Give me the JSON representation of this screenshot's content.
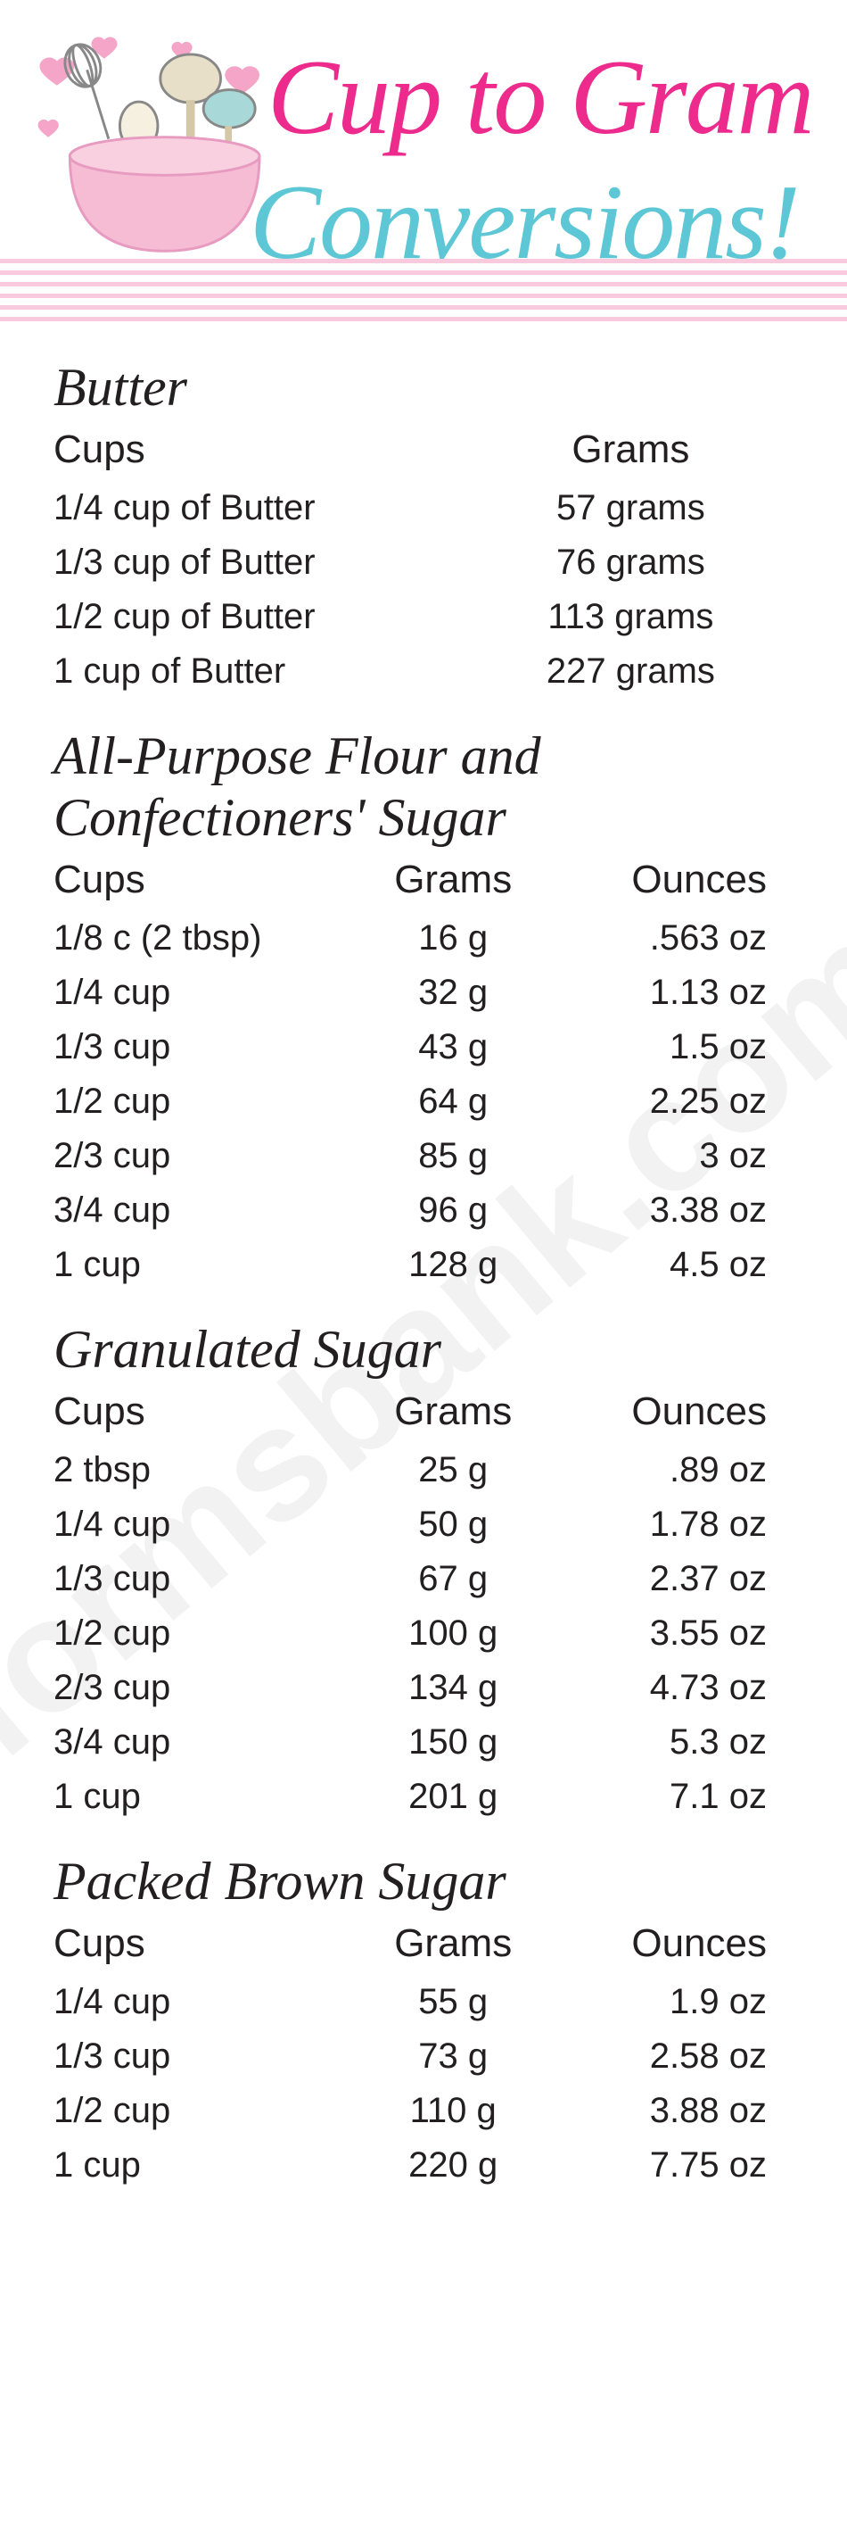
{
  "header": {
    "title_line1": "Cup to Gram",
    "title_line2": "Conversions!",
    "title_color1": "#ec2b8c",
    "title_color2": "#5ec7d6",
    "stripe_color": "#f9c9dd",
    "stripe_count": 6,
    "bowl_color": "#f5bcd4",
    "heart_color": "#f5a6c8"
  },
  "watermark": "formsbank.com",
  "sections": [
    {
      "title": "Butter",
      "columns": [
        "Cups",
        "Grams"
      ],
      "rows": [
        [
          "1/4 cup of Butter",
          "57 grams"
        ],
        [
          "1/3 cup of Butter",
          "76 grams"
        ],
        [
          "1/2 cup of Butter",
          "113 grams"
        ],
        [
          "1 cup of Butter",
          "227 grams"
        ]
      ]
    },
    {
      "title": "All-Purpose Flour and Confectioners' Sugar",
      "columns": [
        "Cups",
        "Grams",
        "Ounces"
      ],
      "rows": [
        [
          "1/8 c (2 tbsp)",
          "16 g",
          ".563 oz"
        ],
        [
          "1/4 cup",
          "32 g",
          "1.13 oz"
        ],
        [
          "1/3 cup",
          "43 g",
          "1.5  oz"
        ],
        [
          "1/2 cup",
          "64 g",
          "2.25 oz"
        ],
        [
          "2/3 cup",
          "85 g",
          "3  oz"
        ],
        [
          "3/4 cup",
          "96 g",
          "3.38 oz"
        ],
        [
          "1 cup",
          "128 g",
          "4.5 oz"
        ]
      ]
    },
    {
      "title": "Granulated Sugar",
      "columns": [
        "Cups",
        "Grams",
        "Ounces"
      ],
      "rows": [
        [
          "2 tbsp",
          "25 g",
          ".89 oz"
        ],
        [
          "1/4 cup",
          "50 g",
          "1.78 oz"
        ],
        [
          "1/3 cup",
          "67 g",
          "2.37 oz"
        ],
        [
          "1/2 cup",
          "100 g",
          "3.55 oz"
        ],
        [
          "2/3 cup",
          "134 g",
          "4.73 oz"
        ],
        [
          "3/4 cup",
          "150 g",
          "5.3 oz"
        ],
        [
          "1 cup",
          "201 g",
          "7.1 oz"
        ]
      ]
    },
    {
      "title": "Packed Brown Sugar",
      "columns": [
        "Cups",
        "Grams",
        "Ounces"
      ],
      "rows": [
        [
          "1/4 cup",
          "55 g",
          "1.9 oz"
        ],
        [
          "1/3 cup",
          "73 g",
          "2.58 oz"
        ],
        [
          "1/2 cup",
          "110 g",
          "3.88 oz"
        ],
        [
          "1 cup",
          "220 g",
          "7.75 oz"
        ]
      ]
    }
  ],
  "styling": {
    "body_font": "Century Gothic",
    "script_font": "Brush Script MT",
    "text_color": "#231f20",
    "section_title_fontsize": 60,
    "th_fontsize": 44,
    "td_fontsize": 40,
    "background": "#ffffff"
  }
}
